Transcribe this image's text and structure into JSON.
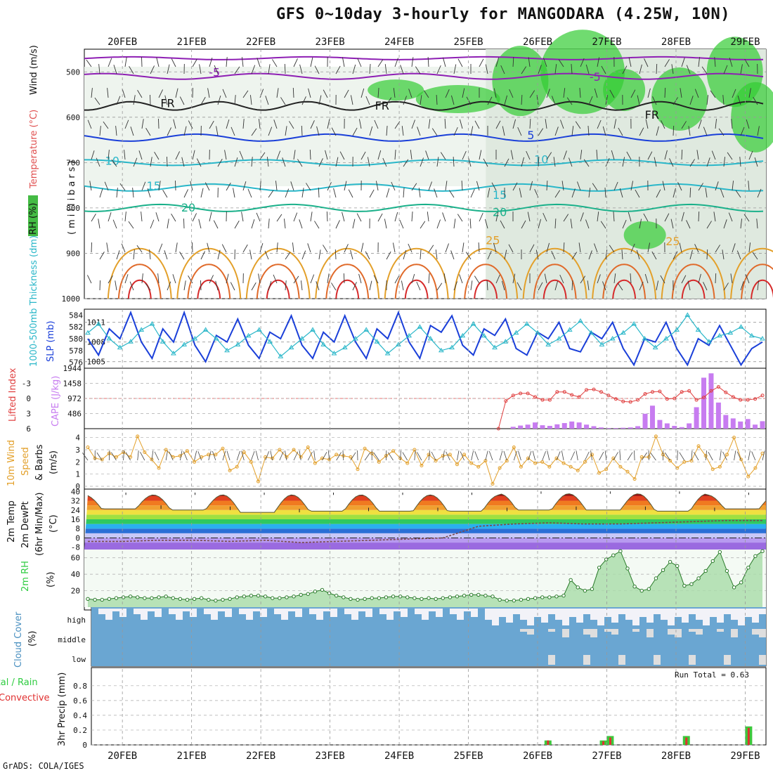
{
  "title": "GFS 0~10day 3-hourly for MANGODARA (4.25W, 10N)",
  "footer": "GrADS: COLA/IGES",
  "run_total": "Run Total = 0.63",
  "colors": {
    "rh_green": "#33cc33",
    "rh_light": "#e8f3e8",
    "temp_purple": "#8e1fb4",
    "temp_blue": "#1a3fd9",
    "temp_cyan": "#2ab7c9",
    "temp_teal": "#1ab08a",
    "temp_orange": "#e3a02a",
    "temp_red": "#d62a2a",
    "slp_blue": "#1a3fd9",
    "thick_cyan": "#2ab7c9",
    "li_red": "#e04040",
    "cape_purple": "#c77cf0",
    "wind_orange": "#e3a02a",
    "rh2m_green": "#2ecc40",
    "cloud_blue": "#6aa6d2",
    "cloud_white": "#f2f2f8",
    "rain_green": "#3cc83c",
    "conv_red": "#e03030"
  },
  "panels": {
    "upper": {
      "ylabel_wind": "Wind (m/s)",
      "ylabel_temp": "Temperature (°C)",
      "ylabel_rh": "RH (%)",
      "ylabel_mb": "(millibars)"
    },
    "slp": {
      "ylabel_thick": "1000-500mb Thickness (dm)",
      "ylabel_slp": "SLP (mb)"
    },
    "cape": {
      "ylabel_li": "Lifted Index",
      "ylabel_cape": "CAPE (J/kg)"
    },
    "wind10": {
      "ylabel_a": "10m Wind",
      "ylabel_b": "Speed",
      "ylabel_c": "& Barbs",
      "ylabel_unit": "(m/s)"
    },
    "temp2m": {
      "ylabel_a": "2m Temp",
      "ylabel_b": "2m DewPt",
      "ylabel_c": "(6hr Min/Max)",
      "ylabel_unit": "(°C)"
    },
    "rh2m": {
      "ylabel_a": "2m RH",
      "ylabel_unit": "(%)"
    },
    "cloud": {
      "ylabel_a": "Cloud Cover",
      "ylabel_unit": "(%)"
    },
    "precip": {
      "ylabel_a": "Total / Rain",
      "ylabel_b": "Convective",
      "ylabel_c": "3hr Precip (mm)"
    }
  },
  "chart_data": [
    {
      "type": "heatmap",
      "name": "upper-air time-height",
      "x_dates": [
        "20FEB",
        "21FEB",
        "22FEB",
        "23FEB",
        "24FEB",
        "25FEB",
        "26FEB",
        "27FEB",
        "28FEB",
        "29FEB"
      ],
      "y_ticks": [
        "500",
        "600",
        "700",
        "800",
        "900",
        "1000"
      ],
      "ylim": [
        450,
        1000
      ],
      "contour_labels": [
        "-5",
        "-5",
        "FR",
        "FR",
        "FR",
        "5",
        "10",
        "10",
        "15",
        "15",
        "20",
        "20",
        "25",
        "25"
      ]
    },
    {
      "type": "line",
      "name": "slp-thickness",
      "y_ticks_left": [
        "584",
        "582",
        "580",
        "578",
        "576"
      ],
      "y_ticks_right": [
        "1011",
        "1008",
        "1005"
      ],
      "ylim_slp": [
        1004,
        1013
      ],
      "series": [
        {
          "name": "SLP (mb)",
          "values": [
            1008.5,
            1006.0,
            1010.0,
            1008.5,
            1012.5,
            1008.0,
            1005.5,
            1010.0,
            1008.0,
            1012.5,
            1007.5,
            1005.0,
            1009.0,
            1008.0,
            1011.5,
            1007.5,
            1005.5,
            1009.5,
            1008.5,
            1012.0,
            1007.5,
            1005.5,
            1009.5,
            1008.0,
            1012.0,
            1008.0,
            1005.5,
            1010.0,
            1008.5,
            1012.5,
            1008.0,
            1005.5,
            1010.5,
            1009.5,
            1012.0,
            1007.5,
            1006.0,
            1010.0,
            1009.0,
            1011.5,
            1007.0,
            1006.0,
            1009.5,
            1008.5,
            1011.0,
            1007.0,
            1006.5,
            1009.5,
            1008.5,
            1011.0,
            1007.0,
            1004.5,
            1008.5,
            1008.0,
            1011.0,
            1007.0,
            1004.5,
            1008.5,
            1007.5,
            1010.5,
            1007.5,
            1004.5,
            1007.0,
            1008.0
          ]
        },
        {
          "name": "Thickness (dm)",
          "values": [
            581.0,
            582.5,
            580.0,
            578.5,
            579.5,
            581.5,
            582.5,
            579.5,
            577.5,
            579.0,
            580.0,
            581.5,
            580.0,
            578.0,
            579.0,
            580.5,
            581.5,
            579.5,
            577.0,
            578.5,
            580.0,
            581.5,
            579.0,
            577.5,
            578.5,
            580.0,
            581.5,
            579.5,
            577.5,
            579.0,
            580.5,
            582.0,
            580.0,
            578.0,
            578.5,
            580.5,
            582.5,
            580.5,
            578.5,
            579.5,
            581.0,
            582.5,
            581.0,
            579.0,
            580.0,
            581.5,
            583.0,
            581.0,
            579.0,
            580.0,
            581.0,
            582.5,
            580.0,
            578.5,
            580.0,
            581.5,
            584.0,
            581.5,
            579.5,
            580.5,
            581.0,
            582.0,
            580.5,
            580.0
          ]
        }
      ]
    },
    {
      "type": "bar",
      "name": "cape-lifted-index",
      "y_ticks_left": [
        "-3",
        "0",
        "3",
        "6"
      ],
      "y_ticks_right": [
        "1944",
        "1458",
        "972",
        "486"
      ],
      "cape_values": [
        0,
        0,
        0,
        0,
        0,
        0,
        0,
        0,
        0,
        0,
        0,
        0,
        0,
        0,
        0,
        0,
        0,
        0,
        0,
        0,
        0,
        0,
        0,
        0,
        0,
        0,
        0,
        0,
        0,
        0,
        0,
        0,
        0,
        0,
        0,
        0,
        0,
        0,
        0,
        0,
        0,
        0,
        0,
        0,
        0,
        0,
        0,
        0,
        0,
        0,
        0,
        0,
        0,
        0,
        0,
        0,
        0,
        0,
        60,
        100,
        130,
        200,
        110,
        90,
        140,
        180,
        230,
        200,
        130,
        80,
        40,
        20,
        20,
        30,
        40,
        80,
        480,
        740,
        280,
        170,
        90,
        50,
        170,
        690,
        1640,
        1780,
        840,
        440,
        330,
        230,
        310,
        130,
        240
      ],
      "li_values": [
        null,
        null,
        null,
        null,
        null,
        null,
        null,
        null,
        null,
        null,
        null,
        null,
        null,
        null,
        null,
        null,
        null,
        null,
        null,
        null,
        null,
        null,
        null,
        null,
        null,
        null,
        null,
        null,
        null,
        null,
        null,
        null,
        null,
        null,
        null,
        null,
        null,
        null,
        null,
        null,
        null,
        null,
        null,
        null,
        null,
        null,
        null,
        null,
        null,
        null,
        null,
        null,
        null,
        null,
        null,
        null,
        6,
        0.5,
        -0.6,
        -1.0,
        -1.0,
        -0.3,
        0.3,
        0.3,
        -1.3,
        -1.3,
        -0.7,
        -0.3,
        -1.7,
        -1.8,
        -1.3,
        -0.6,
        0.1,
        0.6,
        0.7,
        0.3,
        -0.9,
        -1.3,
        -1.4,
        0.1,
        0.0,
        -1.3,
        -1.5,
        0.3,
        -0.2,
        -1.5,
        -2.3,
        -1.2,
        -0.3,
        0.3,
        0.3,
        0.1,
        -0.6
      ]
    },
    {
      "type": "line",
      "name": "10m-wind",
      "y_ticks": [
        "0",
        "1",
        "2",
        "3",
        "4"
      ],
      "ylim": [
        0,
        4.5
      ],
      "values": [
        3.2,
        2.3,
        2.2,
        2.7,
        2.4,
        2.8,
        2.4,
        4.1,
        2.8,
        2.2,
        1.5,
        3.0,
        2.4,
        2.5,
        2.9,
        2.0,
        2.4,
        2.6,
        2.6,
        3.1,
        1.3,
        1.6,
        2.8,
        2.0,
        0.4,
        2.4,
        2.3,
        3.0,
        2.4,
        3.0,
        2.4,
        3.2,
        1.9,
        2.3,
        2.2,
        2.6,
        2.5,
        2.4,
        1.4,
        3.1,
        2.7,
        2.0,
        2.5,
        2.9,
        2.3,
        1.9,
        3.0,
        1.7,
        2.6,
        2.1,
        2.5,
        2.6,
        1.8,
        2.6,
        1.9,
        1.6,
        2.1,
        0.2,
        1.5,
        2.1,
        3.2,
        1.6,
        2.3,
        1.9,
        2.0,
        1.6,
        2.3,
        1.9,
        1.6,
        1.3,
        2.0,
        2.6,
        1.1,
        1.4,
        2.3,
        1.6,
        1.2,
        0.6,
        2.4,
        2.4,
        4.1,
        2.6,
        2.1,
        1.5,
        2.0,
        2.1,
        3.3,
        2.5,
        1.4,
        1.6,
        2.6,
        4.0,
        2.2,
        0.8,
        1.5,
        2.7
      ]
    },
    {
      "type": "area",
      "name": "2m-temp-dewpoint",
      "y_ticks": [
        "40",
        "32",
        "24",
        "16",
        "8",
        "0",
        "-8"
      ],
      "ylim": [
        -10,
        42
      ],
      "temp_max": [
        37,
        37,
        37,
        37,
        37,
        37,
        38,
        38,
        38,
        37
      ],
      "temp_min": [
        25,
        24,
        22,
        23,
        23,
        23,
        24,
        24,
        23,
        25
      ],
      "dewpoint": [
        -3,
        -3,
        -2,
        -2,
        -3,
        -2,
        -4,
        -3,
        -2,
        -1,
        0,
        10,
        12,
        13,
        12,
        12,
        13,
        14,
        15,
        15
      ]
    },
    {
      "type": "area",
      "name": "2m-rh",
      "y_ticks": [
        "20",
        "40",
        "60"
      ],
      "ylim": [
        0,
        70
      ],
      "values": [
        10,
        9,
        9,
        10,
        11,
        12,
        13,
        12,
        11,
        11,
        12,
        13,
        11,
        10,
        9,
        10,
        11,
        9,
        8,
        9,
        10,
        12,
        13,
        14,
        14,
        13,
        11,
        11,
        12,
        13,
        15,
        16,
        19,
        21,
        17,
        14,
        12,
        10,
        9,
        10,
        11,
        11,
        12,
        13,
        13,
        12,
        11,
        10,
        11,
        10,
        11,
        12,
        13,
        14,
        15,
        15,
        14,
        13,
        9,
        8,
        8,
        9,
        10,
        11,
        12,
        12,
        13,
        14,
        33,
        24,
        20,
        22,
        48,
        58,
        63,
        68,
        47,
        25,
        20,
        22,
        35,
        45,
        55,
        50,
        26,
        28,
        35,
        44,
        56,
        67,
        44,
        24,
        30,
        48,
        62,
        68
      ]
    },
    {
      "type": "heatmap",
      "name": "cloud-cover",
      "rows": [
        "high",
        "middle",
        "low"
      ]
    },
    {
      "type": "bar",
      "name": "3hr-precip",
      "y_ticks": [
        "0",
        "0.2",
        "0.4",
        "0.6",
        "0.8"
      ],
      "ylim": [
        0,
        0.95
      ],
      "bars": [
        {
          "x": 26.2,
          "total": 0.06,
          "conv": 0.06
        },
        {
          "x": 27.0,
          "total": 0.06,
          "conv": 0.05
        },
        {
          "x": 27.1,
          "total": 0.12,
          "conv": 0.1
        },
        {
          "x": 28.2,
          "total": 0.12,
          "conv": 0.1
        },
        {
          "x": 29.1,
          "total": 0.25,
          "conv": 0.23
        }
      ]
    }
  ]
}
